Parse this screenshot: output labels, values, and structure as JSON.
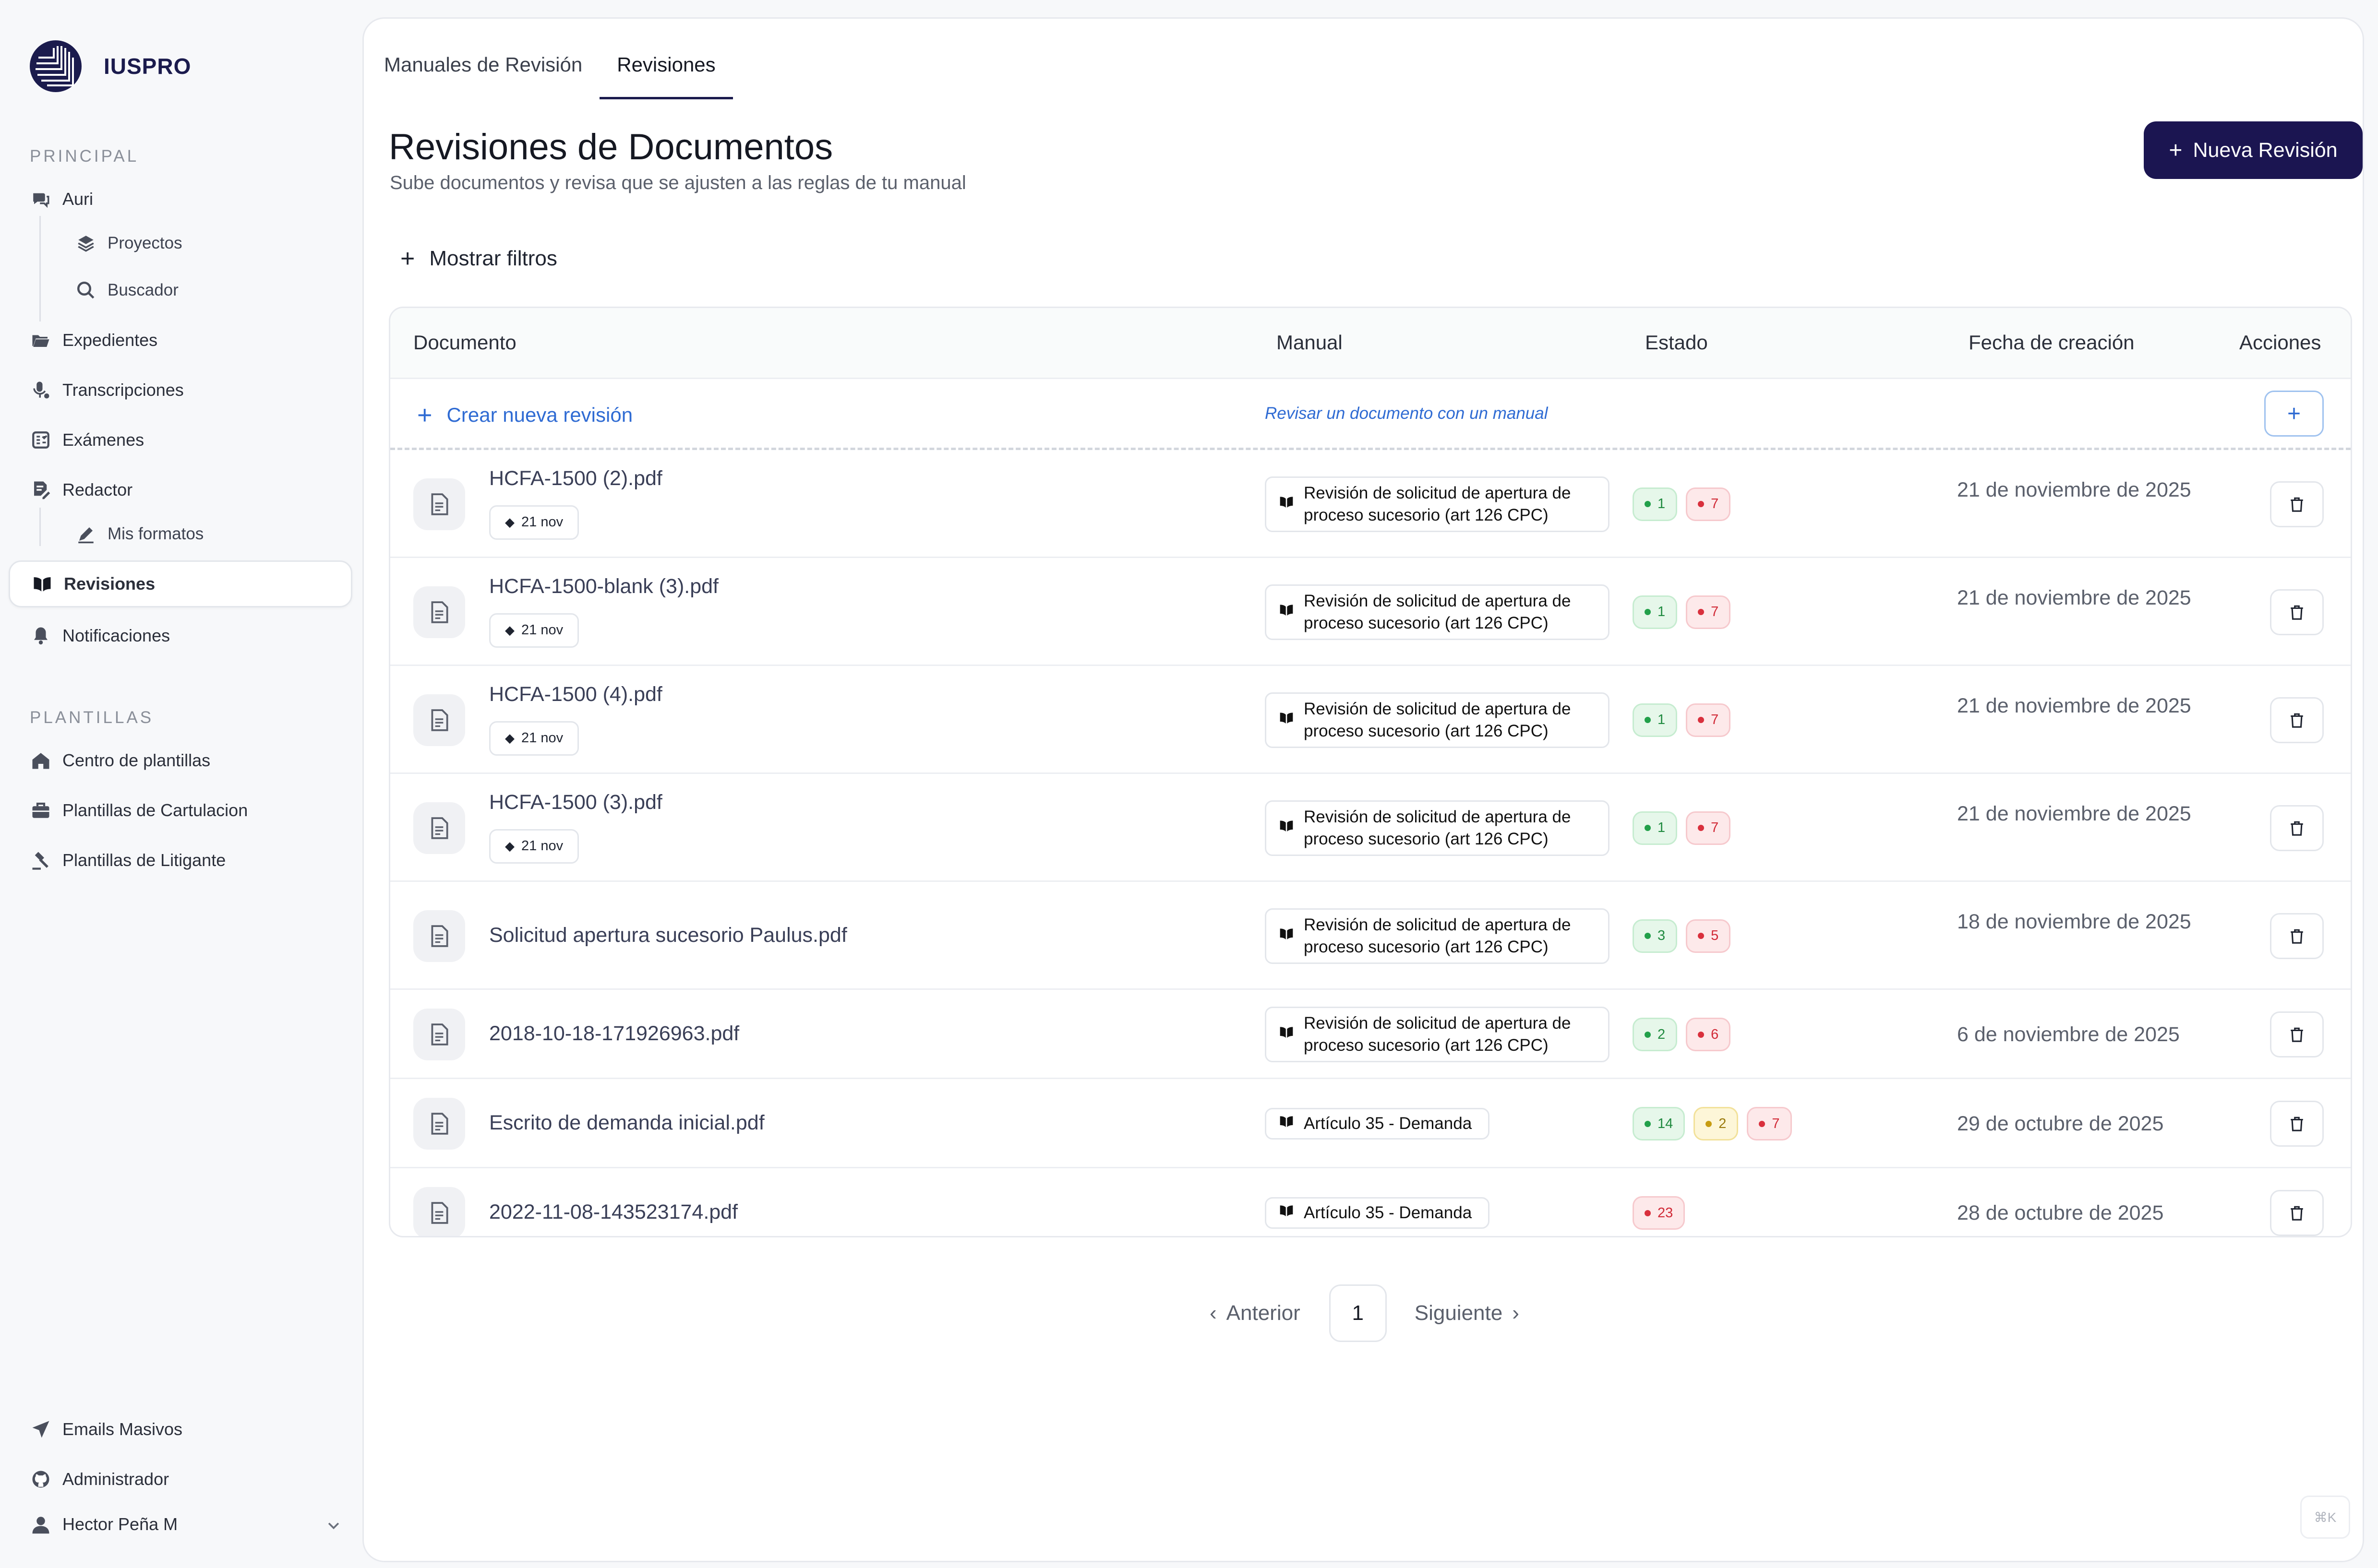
{
  "brand": {
    "name": "IUSPRO"
  },
  "sidebar": {
    "principal_label": "PRINCIPAL",
    "plantillas_label": "PLANTILLAS",
    "items": {
      "auri": "Auri",
      "proyectos": "Proyectos",
      "buscador": "Buscador",
      "expedientes": "Expedientes",
      "transcripciones": "Transcripciones",
      "examenes": "Exámenes",
      "redactor": "Redactor",
      "mis_formatos": "Mis formatos",
      "revisiones": "Revisiones",
      "notificaciones": "Notificaciones",
      "centro_plantillas": "Centro de plantillas",
      "plantillas_cartulacion": "Plantillas de Cartulacion",
      "plantillas_litigante": "Plantillas de Litigante",
      "emails_masivos": "Emails Masivos",
      "administrador": "Administrador"
    },
    "user": {
      "name": "Hector Peña M"
    }
  },
  "tabs": [
    "Manuales de Revisión",
    "Revisiones"
  ],
  "active_tab": "Revisiones",
  "header": {
    "title": "Revisiones de Documentos",
    "subtitle": "Sube documentos y revisa que se ajusten a las reglas de tu manual",
    "new_button": "Nueva Revisión"
  },
  "filters": {
    "label": "Mostrar filtros"
  },
  "table": {
    "columns": [
      "Documento",
      "Manual",
      "Estado",
      "Fecha de creación",
      "Acciones"
    ],
    "create_row": {
      "label": "Crear nueva revisión",
      "hint": "Revisar un documento con un manual"
    },
    "rows": [
      {
        "name": "HCFA-1500 (2).pdf",
        "tag": "21 nov",
        "manual": "Revisión de solicitud de apertura de proceso sucesorio (art 126 CPC)",
        "ok": "1",
        "warn": "",
        "err": "7",
        "date": "21 de noviembre de 2025"
      },
      {
        "name": "HCFA-1500-blank (3).pdf",
        "tag": "21 nov",
        "manual": "Revisión de solicitud de apertura de proceso sucesorio (art 126 CPC)",
        "ok": "1",
        "warn": "",
        "err": "7",
        "date": "21 de noviembre de 2025"
      },
      {
        "name": "HCFA-1500 (4).pdf",
        "tag": "21 nov",
        "manual": "Revisión de solicitud de apertura de proceso sucesorio (art 126 CPC)",
        "ok": "1",
        "warn": "",
        "err": "7",
        "date": "21 de noviembre de 2025"
      },
      {
        "name": "HCFA-1500 (3).pdf",
        "tag": "21 nov",
        "manual": "Revisión de solicitud de apertura de proceso sucesorio (art 126 CPC)",
        "ok": "1",
        "warn": "",
        "err": "7",
        "date": "21 de noviembre de 2025"
      },
      {
        "name": "Solicitud apertura sucesorio Paulus.pdf",
        "tag": "",
        "manual": "Revisión de solicitud de apertura de proceso sucesorio (art 126 CPC)",
        "ok": "3",
        "warn": "",
        "err": "5",
        "date": "18 de noviembre de 2025"
      },
      {
        "name": "2018-10-18-171926963.pdf",
        "tag": "",
        "manual": "Revisión de solicitud de apertura de proceso sucesorio (art 126 CPC)",
        "ok": "2",
        "warn": "",
        "err": "6",
        "date": "6 de noviembre de 2025"
      },
      {
        "name": "Escrito de demanda inicial.pdf",
        "tag": "",
        "manual": "Artículo 35 - Demanda",
        "ok": "14",
        "warn": "2",
        "err": "7",
        "date": "29 de octubre de 2025"
      },
      {
        "name": "2022-11-08-143523174.pdf",
        "tag": "",
        "manual": "Artículo 35 - Demanda",
        "ok": "",
        "warn": "",
        "err": "23",
        "date": "28 de octubre de 2025"
      }
    ]
  },
  "pagination": {
    "prev": "Anterior",
    "page": "1",
    "next": "Siguiente"
  },
  "shortcut": "⌘K",
  "colors": {
    "brand": "#1b1551",
    "link": "#2f6bd3",
    "ok": "#22a04a",
    "warn": "#c79c12",
    "err": "#d9303d"
  }
}
